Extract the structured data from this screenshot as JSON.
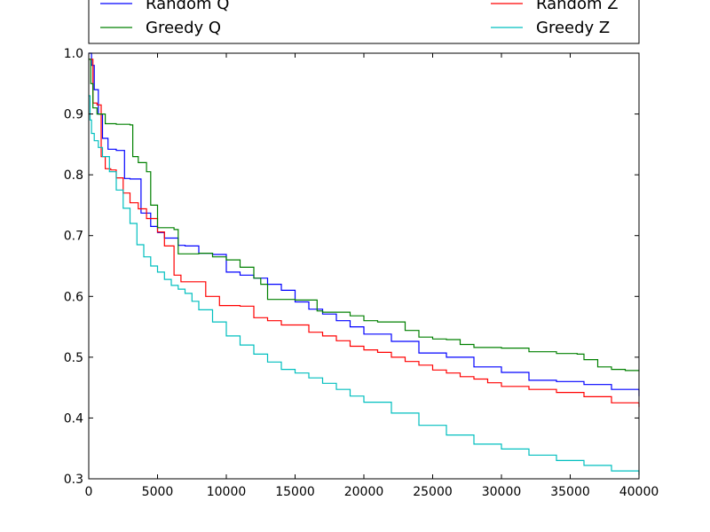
{
  "chart_data": {
    "type": "line",
    "xlim": [
      0,
      40000
    ],
    "ylim": [
      0.3,
      1.0
    ],
    "x_ticks": [
      "0",
      "5000",
      "10000",
      "15000",
      "20000",
      "25000",
      "30000",
      "35000",
      "40000"
    ],
    "x_tick_values": [
      0,
      5000,
      10000,
      15000,
      20000,
      25000,
      30000,
      35000,
      40000
    ],
    "y_ticks": [
      "0.3",
      "0.4",
      "0.5",
      "0.6",
      "0.7",
      "0.8",
      "0.9",
      "1.0"
    ],
    "y_tick_values": [
      0.3,
      0.4,
      0.5,
      0.6,
      0.7,
      0.8,
      0.9,
      1.0
    ],
    "grid": false,
    "legend_position": "top (above plot, partially cropped)",
    "series": [
      {
        "name": "Random Q",
        "color": "#0000ff",
        "x": [
          0,
          200,
          400,
          700,
          1000,
          1400,
          2000,
          2600,
          3000,
          3800,
          4500,
          5000,
          5500,
          6500,
          7000,
          8000,
          9000,
          10000,
          11000,
          12000,
          13000,
          14000,
          15000,
          16000,
          17000,
          18000,
          19000,
          20000,
          22000,
          24000,
          26000,
          28000,
          30000,
          32000,
          34000,
          36000,
          38000,
          40000
        ],
        "y": [
          1.0,
          0.98,
          0.94,
          0.9,
          0.86,
          0.842,
          0.84,
          0.794,
          0.793,
          0.737,
          0.715,
          0.705,
          0.696,
          0.684,
          0.683,
          0.671,
          0.669,
          0.64,
          0.635,
          0.63,
          0.62,
          0.61,
          0.591,
          0.579,
          0.571,
          0.56,
          0.55,
          0.538,
          0.526,
          0.507,
          0.5,
          0.484,
          0.475,
          0.462,
          0.46,
          0.455,
          0.447,
          0.436
        ]
      },
      {
        "name": "Random Z",
        "color": "#ff0000",
        "x": [
          0,
          300,
          600,
          900,
          1200,
          1600,
          2000,
          2500,
          3000,
          3600,
          4200,
          5000,
          5500,
          6200,
          6700,
          7500,
          8500,
          9500,
          11000,
          12000,
          13000,
          14000,
          15000,
          16000,
          17000,
          18000,
          19000,
          20000,
          21000,
          22000,
          23000,
          24000,
          25000,
          26000,
          27000,
          28000,
          29000,
          30000,
          32000,
          34000,
          36000,
          38000,
          40000
        ],
        "y": [
          0.99,
          0.918,
          0.915,
          0.83,
          0.81,
          0.808,
          0.795,
          0.77,
          0.754,
          0.744,
          0.728,
          0.706,
          0.683,
          0.635,
          0.624,
          0.624,
          0.6,
          0.585,
          0.584,
          0.565,
          0.56,
          0.553,
          0.553,
          0.541,
          0.535,
          0.527,
          0.518,
          0.512,
          0.508,
          0.5,
          0.493,
          0.487,
          0.479,
          0.474,
          0.468,
          0.464,
          0.458,
          0.452,
          0.447,
          0.442,
          0.435,
          0.425,
          0.418
        ]
      },
      {
        "name": "Greedy Q",
        "color": "#008000",
        "x": [
          0,
          150,
          300,
          600,
          1200,
          2000,
          3000,
          3200,
          3600,
          4200,
          4500,
          5000,
          6200,
          6500,
          7000,
          8000,
          9000,
          10000,
          11000,
          12000,
          12500,
          13000,
          15000,
          16600,
          17000,
          18000,
          19000,
          20000,
          21000,
          23000,
          24000,
          25000,
          26000,
          27000,
          28000,
          30000,
          32000,
          34000,
          35500,
          36000,
          37000,
          38000,
          39000,
          40000
        ],
        "y": [
          0.99,
          0.95,
          0.91,
          0.9,
          0.884,
          0.883,
          0.882,
          0.83,
          0.82,
          0.805,
          0.75,
          0.713,
          0.71,
          0.67,
          0.67,
          0.671,
          0.665,
          0.66,
          0.648,
          0.63,
          0.62,
          0.595,
          0.594,
          0.576,
          0.574,
          0.574,
          0.568,
          0.56,
          0.558,
          0.544,
          0.533,
          0.53,
          0.529,
          0.521,
          0.516,
          0.515,
          0.509,
          0.506,
          0.505,
          0.496,
          0.484,
          0.48,
          0.478,
          0.477
        ]
      },
      {
        "name": "Greedy Z",
        "color": "#00bfbf",
        "x": [
          0,
          100,
          200,
          400,
          700,
          1000,
          1500,
          2000,
          2500,
          3000,
          3500,
          4000,
          4500,
          5000,
          5500,
          6000,
          6500,
          7000,
          7500,
          8000,
          9000,
          10000,
          11000,
          12000,
          13000,
          14000,
          15000,
          16000,
          17000,
          18000,
          19000,
          20000,
          22000,
          24000,
          26000,
          28000,
          30000,
          32000,
          34000,
          36000,
          38000,
          40000
        ],
        "y": [
          0.93,
          0.89,
          0.868,
          0.856,
          0.845,
          0.83,
          0.805,
          0.775,
          0.745,
          0.72,
          0.685,
          0.665,
          0.65,
          0.64,
          0.628,
          0.618,
          0.612,
          0.605,
          0.592,
          0.578,
          0.558,
          0.535,
          0.52,
          0.505,
          0.492,
          0.48,
          0.474,
          0.466,
          0.457,
          0.447,
          0.436,
          0.426,
          0.408,
          0.388,
          0.372,
          0.357,
          0.349,
          0.339,
          0.33,
          0.322,
          0.313,
          0.306
        ]
      }
    ]
  }
}
